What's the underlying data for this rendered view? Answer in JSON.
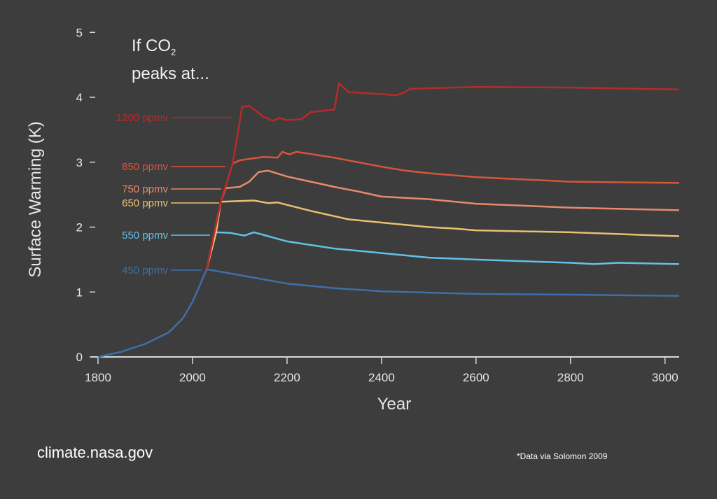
{
  "chart_data": {
    "type": "line",
    "title_line1": "If CO",
    "title_sub": "2",
    "title_line2": "peaks at...",
    "xlabel": "Year",
    "ylabel": "Surface Warming (K)",
    "xlim": [
      1800,
      3030
    ],
    "ylim": [
      0,
      5
    ],
    "xticks": [
      1800,
      2000,
      2200,
      2400,
      2600,
      2800,
      3000
    ],
    "yticks": [
      0,
      1,
      2,
      3,
      4,
      5
    ],
    "grid": false,
    "legend": "inline labels left of curves",
    "historical": {
      "x": [
        1800,
        1850,
        1900,
        1950,
        1980,
        2000,
        2015,
        2030
      ],
      "y": [
        0,
        0.08,
        0.2,
        0.38,
        0.6,
        0.85,
        1.1,
        1.35
      ]
    },
    "series": [
      {
        "name": "1200 ppmv",
        "color": "#b82a2a",
        "x": [
          2030,
          2060,
          2085,
          2105,
          2120,
          2150,
          2170,
          2185,
          2200,
          2230,
          2250,
          2300,
          2310,
          2330,
          2400,
          2430,
          2450,
          2460,
          2600,
          2800,
          3030
        ],
        "y": [
          1.35,
          2.39,
          2.98,
          3.85,
          3.87,
          3.7,
          3.64,
          3.68,
          3.65,
          3.66,
          3.77,
          3.81,
          4.22,
          4.08,
          4.05,
          4.03,
          4.08,
          4.13,
          4.16,
          4.15,
          4.12
        ]
      },
      {
        "name": "850 ppmv",
        "color": "#d9553a",
        "x": [
          2030,
          2060,
          2085,
          2100,
          2150,
          2180,
          2190,
          2205,
          2220,
          2300,
          2400,
          2450,
          2500,
          2600,
          2800,
          3030
        ],
        "y": [
          1.35,
          2.39,
          2.98,
          3.03,
          3.08,
          3.07,
          3.16,
          3.12,
          3.16,
          3.07,
          2.93,
          2.87,
          2.83,
          2.77,
          2.7,
          2.68
        ]
      },
      {
        "name": "750 ppmv",
        "color": "#e88a6a",
        "x": [
          2030,
          2060,
          2070,
          2100,
          2120,
          2140,
          2160,
          2200,
          2250,
          2300,
          2350,
          2400,
          2500,
          2600,
          2800,
          3030
        ],
        "y": [
          1.35,
          2.39,
          2.6,
          2.62,
          2.7,
          2.85,
          2.87,
          2.78,
          2.7,
          2.62,
          2.55,
          2.47,
          2.43,
          2.36,
          2.3,
          2.26
        ]
      },
      {
        "name": "650 ppmv",
        "color": "#e8c070",
        "x": [
          2030,
          2050,
          2060,
          2130,
          2160,
          2180,
          2250,
          2330,
          2400,
          2500,
          2550,
          2600,
          2800,
          2950,
          3030
        ],
        "y": [
          1.35,
          1.92,
          2.39,
          2.41,
          2.37,
          2.38,
          2.25,
          2.12,
          2.07,
          2.0,
          1.98,
          1.95,
          1.92,
          1.88,
          1.86
        ]
      },
      {
        "name": "550 ppmv",
        "color": "#62c1e8",
        "x": [
          2030,
          2050,
          2080,
          2110,
          2130,
          2200,
          2300,
          2400,
          2500,
          2600,
          2800,
          2850,
          2900,
          3030
        ],
        "y": [
          1.35,
          1.92,
          1.91,
          1.87,
          1.92,
          1.78,
          1.67,
          1.6,
          1.53,
          1.5,
          1.45,
          1.43,
          1.45,
          1.43
        ]
      },
      {
        "name": "450 ppmv",
        "color": "#3e6fa8",
        "x": [
          2030,
          2100,
          2200,
          2300,
          2400,
          2600,
          2800,
          3030
        ],
        "y": [
          1.35,
          1.26,
          1.13,
          1.06,
          1.01,
          0.97,
          0.96,
          0.94
        ]
      }
    ]
  },
  "footer": {
    "site": "climate.nasa.gov",
    "source": "*Data via Solomon 2009"
  },
  "colors": {
    "background": "#3d3d3d",
    "axis": "#d8d8d8",
    "text": "#e6e6e6"
  }
}
